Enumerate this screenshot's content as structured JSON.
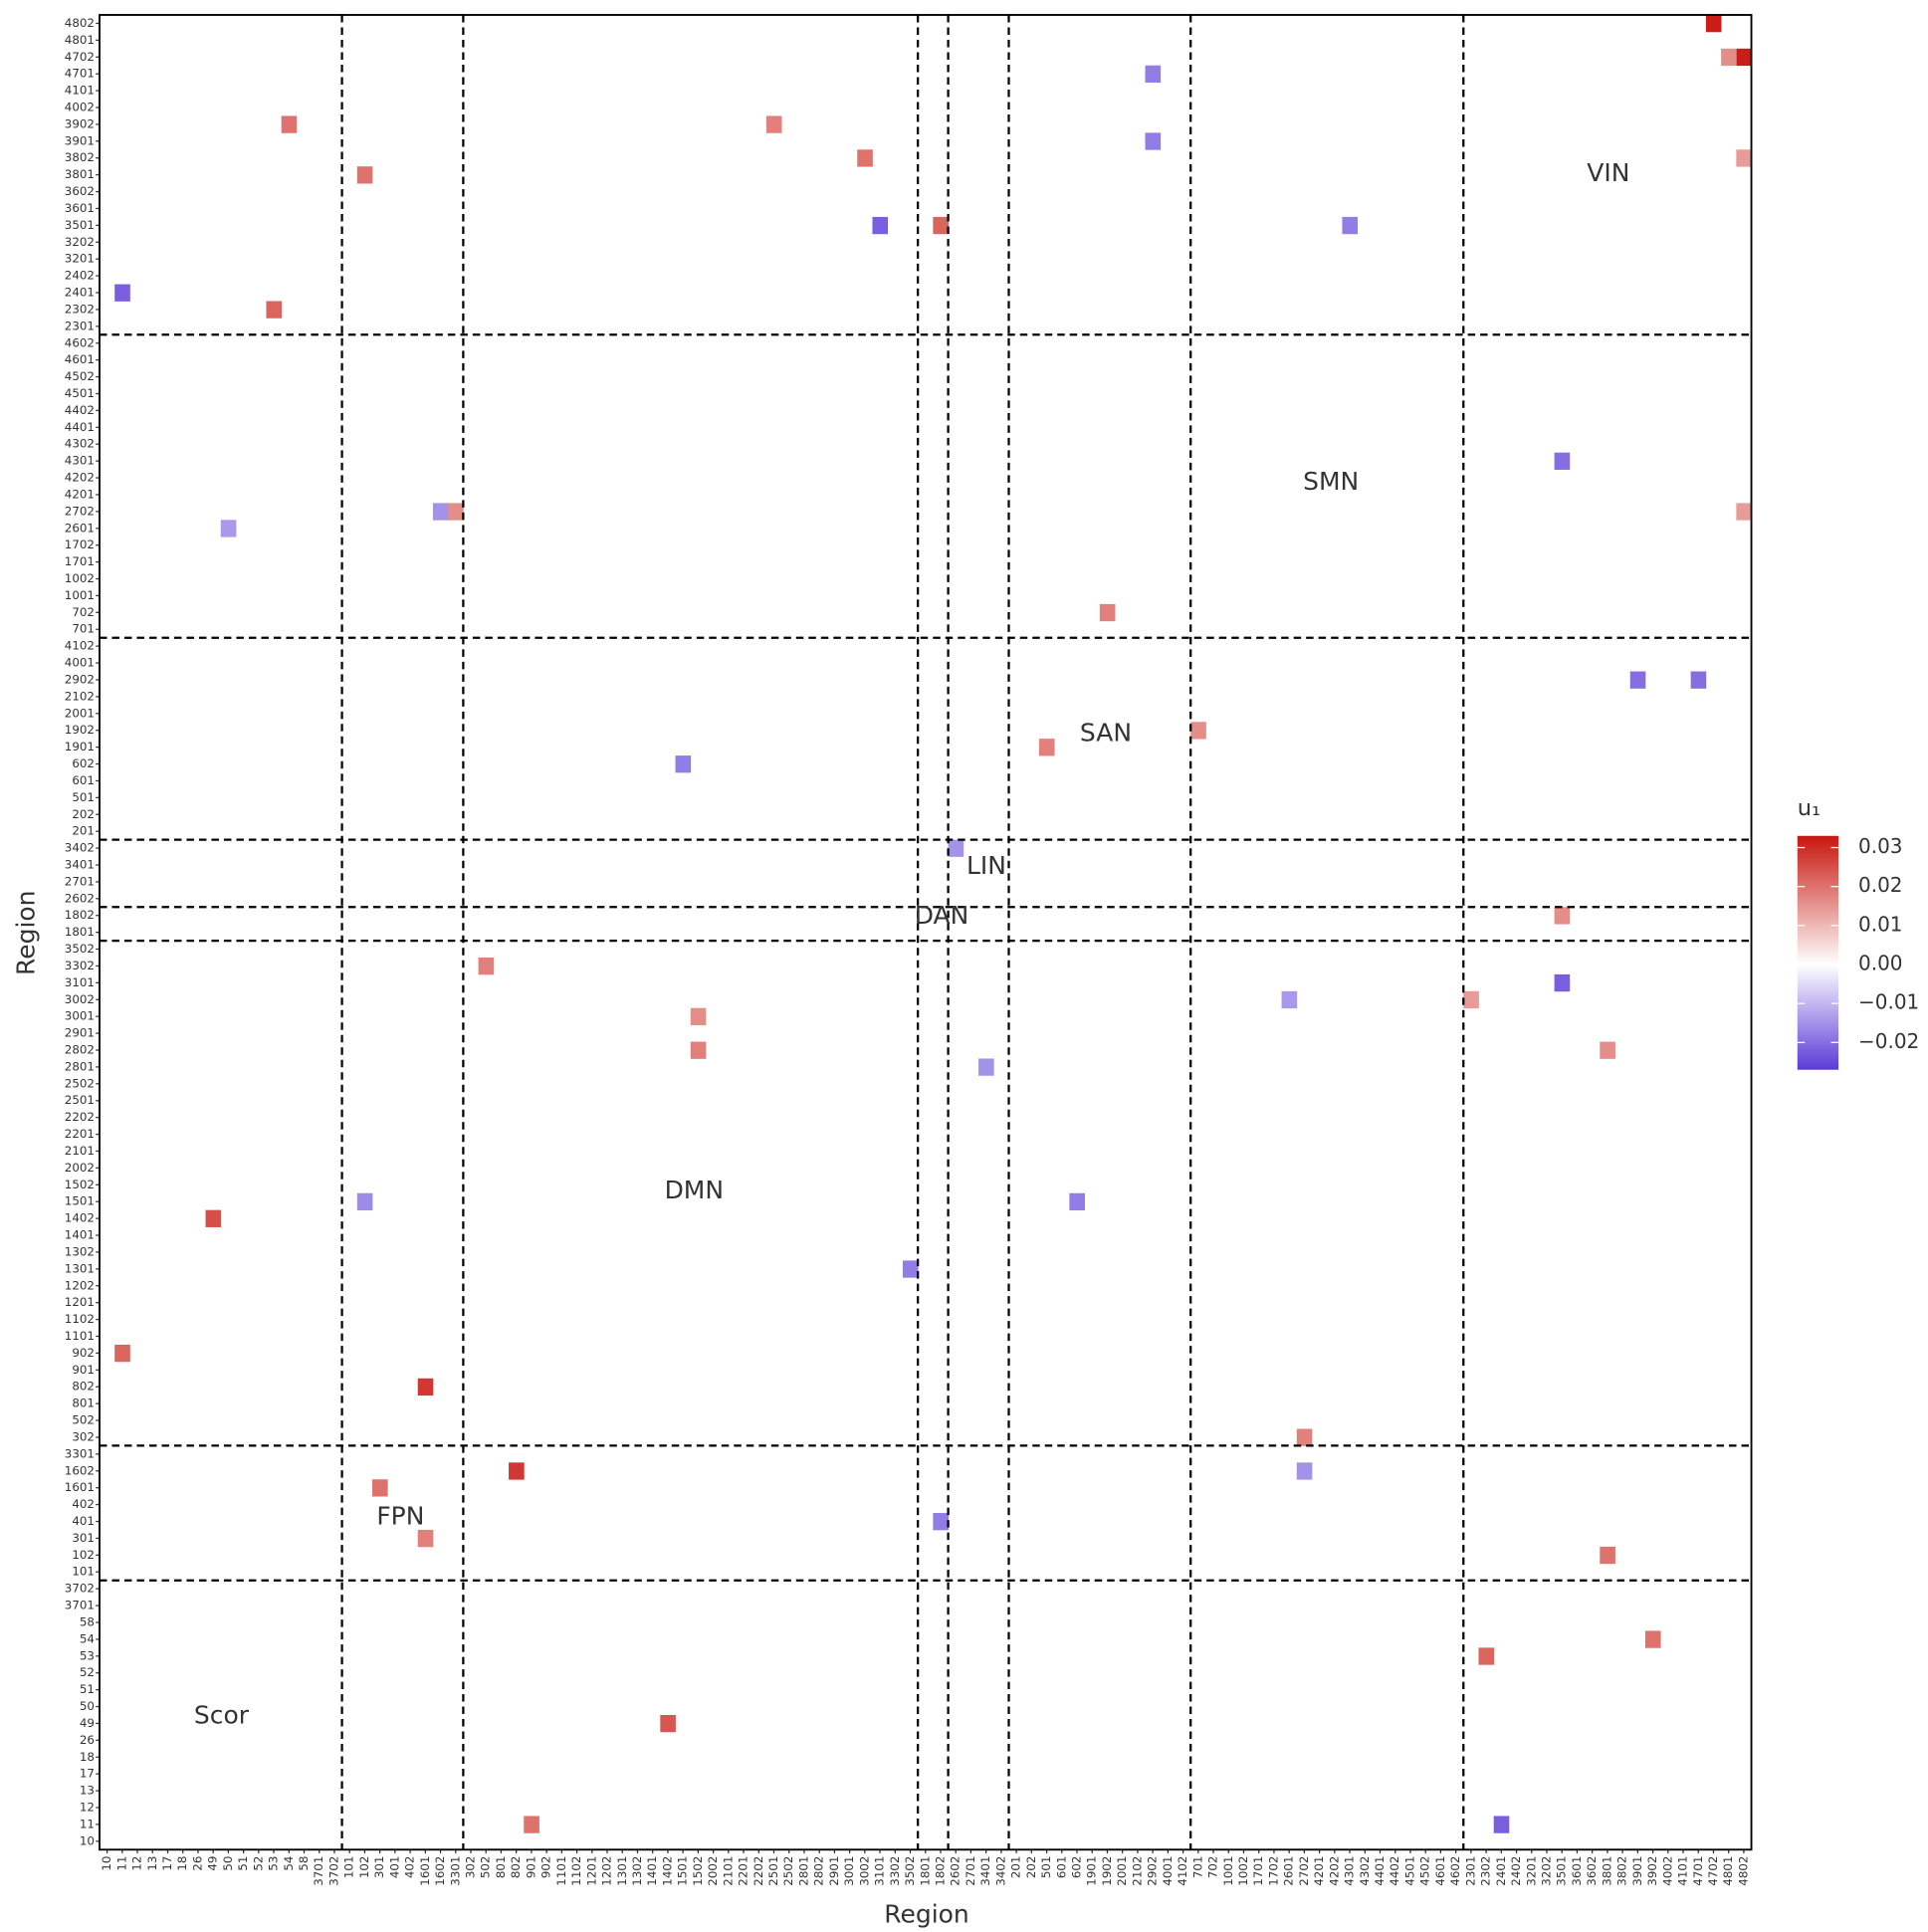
{
  "chart_data": {
    "type": "heatmap",
    "x_label": "Region",
    "y_label": "Region",
    "legend_title": "u₁",
    "networks": [
      {
        "name": "Scor",
        "regions": [
          "10",
          "11",
          "12",
          "13",
          "17",
          "18",
          "26",
          "49",
          "50",
          "51",
          "52",
          "53",
          "54",
          "58",
          "3701",
          "3702"
        ]
      },
      {
        "name": "FPN",
        "regions": [
          "101",
          "102",
          "301",
          "401",
          "402",
          "1601",
          "1602",
          "3301"
        ]
      },
      {
        "name": "DMN",
        "regions": [
          "302",
          "502",
          "801",
          "802",
          "901",
          "902",
          "1101",
          "1102",
          "1201",
          "1202",
          "1301",
          "1302",
          "1401",
          "1402",
          "1501",
          "1502",
          "2002",
          "2101",
          "2201",
          "2202",
          "2501",
          "2502",
          "2801",
          "2802",
          "2901",
          "3001",
          "3002",
          "3101",
          "3302",
          "3502"
        ]
      },
      {
        "name": "DAN",
        "regions": [
          "1801",
          "1802"
        ]
      },
      {
        "name": "LIN",
        "regions": [
          "2602",
          "2701",
          "3401",
          "3402"
        ]
      },
      {
        "name": "SAN",
        "regions": [
          "201",
          "202",
          "501",
          "601",
          "602",
          "1901",
          "1902",
          "2001",
          "2102",
          "2902",
          "4001",
          "4102"
        ]
      },
      {
        "name": "SMN",
        "regions": [
          "701",
          "702",
          "1001",
          "1002",
          "1701",
          "1702",
          "2601",
          "2702",
          "4201",
          "4202",
          "4301",
          "4302",
          "4401",
          "4402",
          "4501",
          "4502",
          "4601",
          "4602"
        ]
      },
      {
        "name": "VIN",
        "regions": [
          "2301",
          "2302",
          "2401",
          "2402",
          "3201",
          "3202",
          "3501",
          "3601",
          "3602",
          "3801",
          "3802",
          "3901",
          "3902",
          "4002",
          "4101",
          "4701",
          "4702",
          "4801",
          "4802"
        ]
      }
    ],
    "y": [
      "4802",
      "4702",
      "3501",
      "2401",
      "2302",
      "3902",
      "3801",
      "3802",
      "3501",
      "4701",
      "3901",
      "3501",
      "4301",
      "2902",
      "2902",
      "2601",
      "2702",
      "2702",
      "702",
      "1902",
      "1901",
      "602",
      "1802",
      "3101",
      "3002",
      "3002",
      "3302",
      "3001",
      "2802",
      "2802",
      "1501",
      "1402",
      "1501",
      "1301",
      "902",
      "802",
      "1602",
      "1601",
      "301",
      "401",
      "102",
      "53",
      "54",
      "49",
      "11",
      "11",
      "1602",
      "302",
      "3902",
      "2801",
      "3402",
      "4702",
      "3802",
      "2702"
    ],
    "x": [
      "4702",
      "4802",
      "3101",
      "11",
      "53",
      "54",
      "102",
      "3002",
      "1802",
      "2902",
      "2902",
      "4301",
      "3501",
      "3901",
      "4701",
      "50",
      "1602",
      "3301",
      "1902",
      "701",
      "501",
      "1501",
      "3501",
      "3501",
      "2601",
      "2301",
      "502",
      "1502",
      "1502",
      "3801",
      "602",
      "49",
      "102",
      "3502",
      "11",
      "1601",
      "802",
      "301",
      "1601",
      "1802",
      "3801",
      "2302",
      "3902",
      "1402",
      "2401",
      "901",
      "2702",
      "2702",
      "2501",
      "3401",
      "2602",
      "4801",
      "4802",
      "4802"
    ],
    "values": [
      0.032,
      0.032,
      -0.022,
      -0.022,
      0.022,
      0.02,
      0.02,
      0.02,
      0.022,
      -0.018,
      -0.018,
      -0.018,
      -0.02,
      -0.02,
      -0.02,
      -0.014,
      -0.015,
      0.016,
      0.018,
      0.016,
      0.018,
      -0.018,
      0.016,
      -0.022,
      -0.014,
      0.014,
      0.018,
      0.016,
      0.018,
      0.016,
      -0.018,
      0.025,
      -0.016,
      -0.018,
      0.022,
      0.028,
      0.028,
      0.02,
      0.018,
      -0.018,
      0.02,
      0.022,
      0.02,
      0.024,
      -0.022,
      0.02,
      -0.015,
      0.018,
      0.018,
      -0.015,
      -0.015,
      0.016,
      0.014,
      0.014
    ],
    "clim": [
      -0.027,
      0.033
    ],
    "low_color": "#5b3bd8",
    "mid_color": "#ffffff",
    "high_color": "#c8160e",
    "colorbar_ticks": [
      {
        "value": 0.03,
        "label": "0.03"
      },
      {
        "value": 0.02,
        "label": "0.02"
      },
      {
        "value": 0.01,
        "label": "0.01"
      },
      {
        "value": 0,
        "label": "0.00"
      },
      {
        "value": -0.01,
        "label": "−0.01"
      },
      {
        "value": -0.02,
        "label": "−0.02"
      }
    ]
  }
}
